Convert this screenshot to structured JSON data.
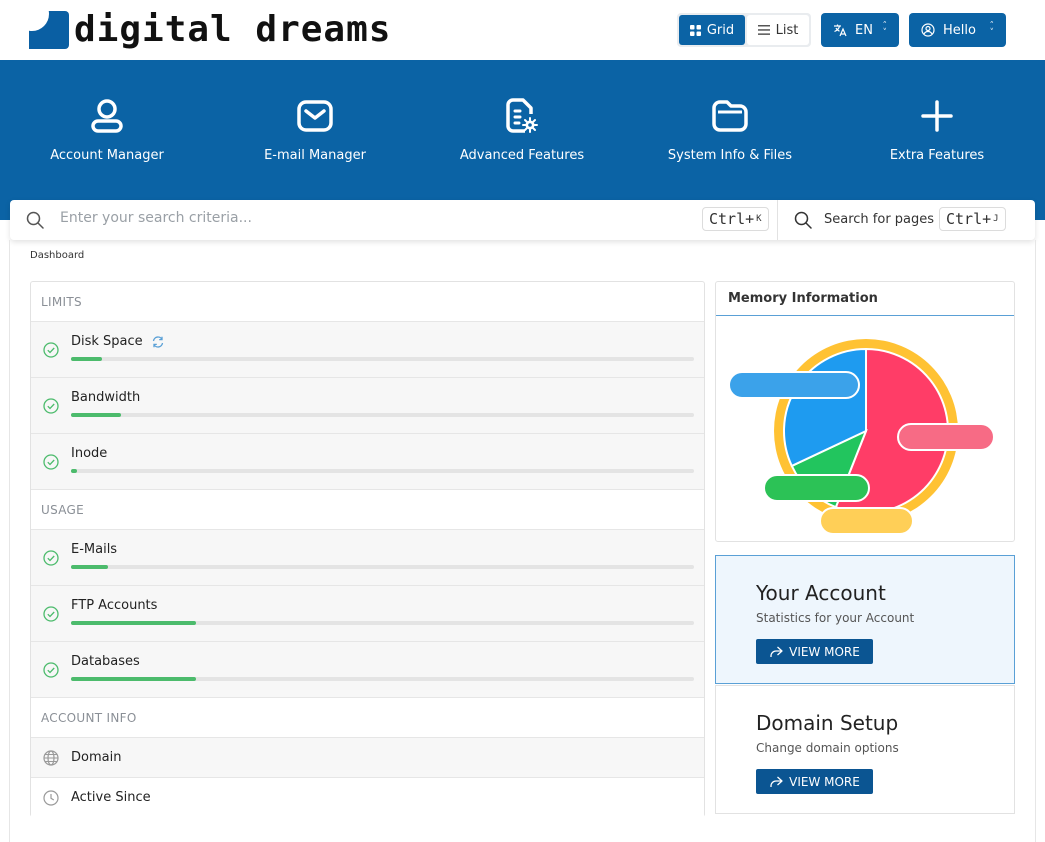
{
  "brand": {
    "name": "digital dreams"
  },
  "header": {
    "view_grid": "Grid",
    "view_list": "List",
    "language": "EN",
    "user": "Hello"
  },
  "nav": [
    {
      "label": "Account Manager",
      "icon": "user-icon"
    },
    {
      "label": "E-mail Manager",
      "icon": "envelope-icon"
    },
    {
      "label": "Advanced Features",
      "icon": "file-gear-icon"
    },
    {
      "label": "System Info & Files",
      "icon": "folder-icon"
    },
    {
      "label": "Extra Features",
      "icon": "plus-icon"
    }
  ],
  "search": {
    "placeholder": "Enter your search criteria...",
    "shortcut_main": "Ctrl+",
    "shortcut_key": "K",
    "pages_label": "Search for pages",
    "pages_shortcut_main": "Ctrl+",
    "pages_shortcut_key": "J"
  },
  "breadcrumb": "Dashboard",
  "limits": {
    "heading": "LIMITS",
    "items": [
      {
        "label": "Disk Space",
        "fill": 0.05
      },
      {
        "label": "Bandwidth",
        "fill": 0.08
      },
      {
        "label": "Inode",
        "fill": 0.01
      }
    ]
  },
  "usage": {
    "heading": "USAGE",
    "items": [
      {
        "label": "E-Mails",
        "fill": 0.06
      },
      {
        "label": "FTP Accounts",
        "fill": 0.2
      },
      {
        "label": "Databases",
        "fill": 0.2
      }
    ]
  },
  "account_info": {
    "heading": "ACCOUNT INFO",
    "domain_label": "Domain",
    "active_since_label": "Active Since"
  },
  "memory": {
    "title": "Memory Information",
    "chart_data": {
      "type": "pie",
      "slices": [
        {
          "value": 56,
          "color": "#ff3d67"
        },
        {
          "value": 12,
          "color": "#22c55e"
        },
        {
          "value": 32,
          "color": "#1e9bf0"
        }
      ],
      "outer_ring_color": "#ffc233"
    }
  },
  "cards": [
    {
      "title": "Your Account",
      "subtitle": "Statistics for your Account",
      "button": "VIEW MORE"
    },
    {
      "title": "Domain Setup",
      "subtitle": "Change domain options",
      "button": "VIEW MORE"
    }
  ],
  "colors": {
    "primary": "#0b63a5",
    "progress": "#4cbb6c",
    "check": "#4cbb6c"
  }
}
